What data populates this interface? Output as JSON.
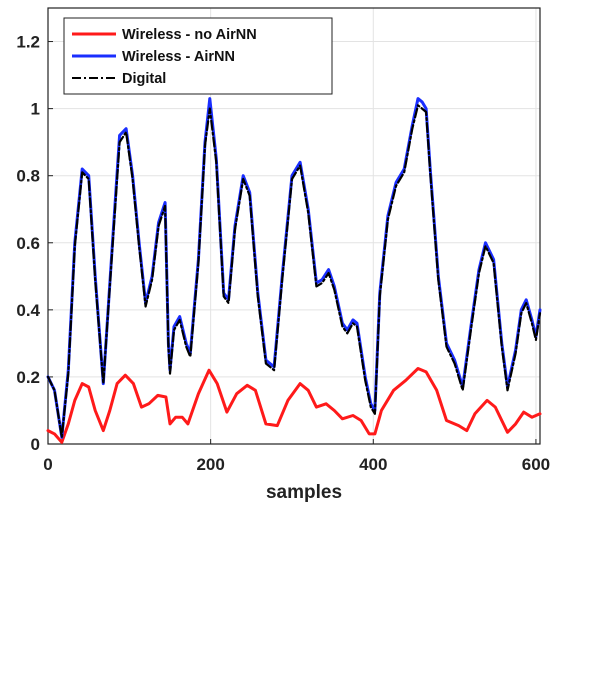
{
  "chart_data": {
    "type": "line",
    "xlabel": "samples",
    "ylabel": "",
    "xlim": [
      0,
      600
    ],
    "ylim": [
      0,
      1.3
    ],
    "x_ticks": [
      "0",
      "200",
      "400",
      "600"
    ],
    "y_ticks": [
      "0",
      "0.2",
      "0.4",
      "0.6",
      "0.8",
      "1",
      "1.2"
    ],
    "grid": true,
    "legend_position": "top-left",
    "series": [
      {
        "name": "Wireless - no AirNN",
        "color": "#ff1a1a",
        "style": "solid",
        "points": [
          [
            0,
            0.04
          ],
          [
            8,
            0.03
          ],
          [
            17,
            0.005
          ],
          [
            25,
            0.06
          ],
          [
            33,
            0.13
          ],
          [
            42,
            0.18
          ],
          [
            50,
            0.17
          ],
          [
            58,
            0.1
          ],
          [
            68,
            0.04
          ],
          [
            76,
            0.1
          ],
          [
            85,
            0.18
          ],
          [
            95,
            0.205
          ],
          [
            105,
            0.18
          ],
          [
            115,
            0.11
          ],
          [
            124,
            0.12
          ],
          [
            135,
            0.145
          ],
          [
            145,
            0.14
          ],
          [
            150,
            0.06
          ],
          [
            157,
            0.08
          ],
          [
            165,
            0.08
          ],
          [
            172,
            0.06
          ],
          [
            185,
            0.15
          ],
          [
            198,
            0.22
          ],
          [
            208,
            0.18
          ],
          [
            220,
            0.095
          ],
          [
            232,
            0.15
          ],
          [
            245,
            0.175
          ],
          [
            255,
            0.16
          ],
          [
            268,
            0.06
          ],
          [
            282,
            0.055
          ],
          [
            295,
            0.13
          ],
          [
            310,
            0.18
          ],
          [
            320,
            0.16
          ],
          [
            330,
            0.11
          ],
          [
            342,
            0.12
          ],
          [
            352,
            0.1
          ],
          [
            362,
            0.075
          ],
          [
            375,
            0.085
          ],
          [
            385,
            0.07
          ],
          [
            395,
            0.03
          ],
          [
            402,
            0.03
          ],
          [
            410,
            0.1
          ],
          [
            425,
            0.16
          ],
          [
            440,
            0.19
          ],
          [
            455,
            0.225
          ],
          [
            465,
            0.215
          ],
          [
            478,
            0.16
          ],
          [
            490,
            0.07
          ],
          [
            505,
            0.055
          ],
          [
            515,
            0.04
          ],
          [
            525,
            0.09
          ],
          [
            540,
            0.13
          ],
          [
            550,
            0.11
          ],
          [
            565,
            0.035
          ],
          [
            575,
            0.06
          ],
          [
            585,
            0.095
          ],
          [
            595,
            0.08
          ],
          [
            605,
            0.09
          ]
        ]
      },
      {
        "name": "Wireless - AirNN",
        "color": "#1a2eff",
        "style": "solid",
        "points": [
          [
            0,
            0.2
          ],
          [
            8,
            0.16
          ],
          [
            17,
            0.02
          ],
          [
            25,
            0.22
          ],
          [
            33,
            0.6
          ],
          [
            42,
            0.82
          ],
          [
            50,
            0.8
          ],
          [
            58,
            0.5
          ],
          [
            68,
            0.18
          ],
          [
            78,
            0.55
          ],
          [
            88,
            0.92
          ],
          [
            96,
            0.94
          ],
          [
            104,
            0.8
          ],
          [
            112,
            0.6
          ],
          [
            120,
            0.42
          ],
          [
            128,
            0.5
          ],
          [
            136,
            0.66
          ],
          [
            144,
            0.72
          ],
          [
            148,
            0.3
          ],
          [
            150,
            0.22
          ],
          [
            155,
            0.35
          ],
          [
            162,
            0.38
          ],
          [
            170,
            0.3
          ],
          [
            175,
            0.27
          ],
          [
            185,
            0.55
          ],
          [
            193,
            0.9
          ],
          [
            199,
            1.03
          ],
          [
            207,
            0.85
          ],
          [
            216,
            0.45
          ],
          [
            222,
            0.43
          ],
          [
            230,
            0.65
          ],
          [
            240,
            0.8
          ],
          [
            248,
            0.75
          ],
          [
            258,
            0.45
          ],
          [
            268,
            0.25
          ],
          [
            278,
            0.23
          ],
          [
            288,
            0.5
          ],
          [
            300,
            0.8
          ],
          [
            310,
            0.84
          ],
          [
            320,
            0.7
          ],
          [
            330,
            0.48
          ],
          [
            337,
            0.49
          ],
          [
            345,
            0.52
          ],
          [
            352,
            0.47
          ],
          [
            362,
            0.36
          ],
          [
            368,
            0.34
          ],
          [
            375,
            0.37
          ],
          [
            380,
            0.36
          ],
          [
            390,
            0.2
          ],
          [
            397,
            0.12
          ],
          [
            402,
            0.1
          ],
          [
            408,
            0.45
          ],
          [
            418,
            0.68
          ],
          [
            428,
            0.78
          ],
          [
            438,
            0.82
          ],
          [
            448,
            0.95
          ],
          [
            455,
            1.03
          ],
          [
            460,
            1.02
          ],
          [
            465,
            1.0
          ],
          [
            470,
            0.82
          ],
          [
            480,
            0.5
          ],
          [
            490,
            0.3
          ],
          [
            500,
            0.25
          ],
          [
            510,
            0.17
          ],
          [
            520,
            0.35
          ],
          [
            530,
            0.52
          ],
          [
            538,
            0.6
          ],
          [
            548,
            0.55
          ],
          [
            558,
            0.3
          ],
          [
            565,
            0.17
          ],
          [
            575,
            0.28
          ],
          [
            582,
            0.4
          ],
          [
            588,
            0.43
          ],
          [
            595,
            0.37
          ],
          [
            600,
            0.32
          ],
          [
            605,
            0.4
          ]
        ]
      },
      {
        "name": "Digital",
        "color": "#000000",
        "style": "dashdot",
        "points": [
          [
            0,
            0.2
          ],
          [
            8,
            0.16
          ],
          [
            17,
            0.02
          ],
          [
            25,
            0.21
          ],
          [
            33,
            0.59
          ],
          [
            42,
            0.81
          ],
          [
            50,
            0.79
          ],
          [
            58,
            0.49
          ],
          [
            68,
            0.18
          ],
          [
            78,
            0.54
          ],
          [
            88,
            0.9
          ],
          [
            96,
            0.93
          ],
          [
            104,
            0.79
          ],
          [
            112,
            0.59
          ],
          [
            120,
            0.41
          ],
          [
            128,
            0.49
          ],
          [
            136,
            0.65
          ],
          [
            144,
            0.71
          ],
          [
            148,
            0.29
          ],
          [
            150,
            0.21
          ],
          [
            155,
            0.34
          ],
          [
            162,
            0.37
          ],
          [
            170,
            0.29
          ],
          [
            175,
            0.26
          ],
          [
            185,
            0.54
          ],
          [
            193,
            0.89
          ],
          [
            199,
            1.0
          ],
          [
            207,
            0.84
          ],
          [
            216,
            0.44
          ],
          [
            222,
            0.42
          ],
          [
            230,
            0.64
          ],
          [
            240,
            0.79
          ],
          [
            248,
            0.74
          ],
          [
            258,
            0.44
          ],
          [
            268,
            0.24
          ],
          [
            278,
            0.22
          ],
          [
            288,
            0.49
          ],
          [
            300,
            0.79
          ],
          [
            310,
            0.83
          ],
          [
            320,
            0.69
          ],
          [
            330,
            0.47
          ],
          [
            337,
            0.48
          ],
          [
            345,
            0.51
          ],
          [
            352,
            0.46
          ],
          [
            362,
            0.35
          ],
          [
            368,
            0.33
          ],
          [
            375,
            0.36
          ],
          [
            380,
            0.35
          ],
          [
            390,
            0.19
          ],
          [
            397,
            0.11
          ],
          [
            402,
            0.09
          ],
          [
            408,
            0.44
          ],
          [
            418,
            0.67
          ],
          [
            428,
            0.77
          ],
          [
            438,
            0.81
          ],
          [
            448,
            0.94
          ],
          [
            455,
            1.01
          ],
          [
            460,
            1.0
          ],
          [
            465,
            0.99
          ],
          [
            470,
            0.81
          ],
          [
            480,
            0.49
          ],
          [
            490,
            0.29
          ],
          [
            500,
            0.24
          ],
          [
            510,
            0.16
          ],
          [
            520,
            0.34
          ],
          [
            530,
            0.51
          ],
          [
            538,
            0.59
          ],
          [
            548,
            0.54
          ],
          [
            558,
            0.29
          ],
          [
            565,
            0.16
          ],
          [
            575,
            0.27
          ],
          [
            582,
            0.39
          ],
          [
            588,
            0.42
          ],
          [
            595,
            0.36
          ],
          [
            600,
            0.31
          ],
          [
            605,
            0.39
          ]
        ]
      }
    ]
  }
}
